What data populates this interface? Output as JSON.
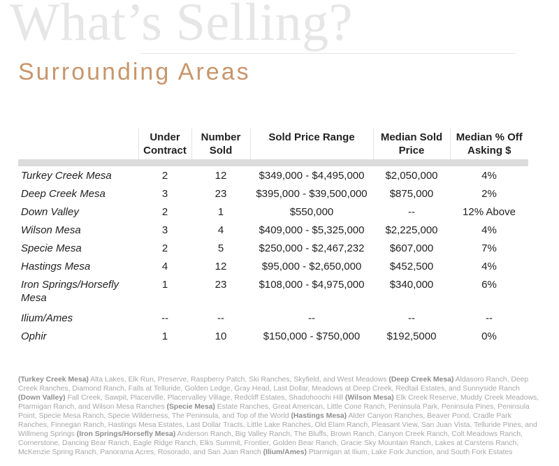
{
  "heading": {
    "title": "What’s Selling?",
    "subtitle": "Surrounding Areas"
  },
  "table": {
    "headers": {
      "area": "",
      "under_contract": [
        "Under",
        "Contract"
      ],
      "number_sold": [
        "Number",
        "Sold"
      ],
      "sold_price_range": "Sold Price Range",
      "median_sold_price": [
        "Median Sold",
        "Price"
      ],
      "median_off_asking": [
        "Median % Off",
        "Asking $"
      ]
    },
    "rows": [
      {
        "area": "Turkey Creek Mesa",
        "under_contract": "2",
        "number_sold": "12",
        "range": "$349,000 - $4,495,000",
        "median": "$2,050,000",
        "off": "4%"
      },
      {
        "area": "Deep Creek Mesa",
        "under_contract": "3",
        "number_sold": "23",
        "range": "$395,000 - $39,500,000",
        "median": "$875,000",
        "off": "2%"
      },
      {
        "area": "Down Valley",
        "under_contract": "2",
        "number_sold": "1",
        "range": "$550,000",
        "median": "--",
        "off": "12% Above"
      },
      {
        "area": "Wilson Mesa",
        "under_contract": "3",
        "number_sold": "4",
        "range": "$409,000 - $5,325,000",
        "median": "$2,225,000",
        "off": "4%"
      },
      {
        "area": "Specie Mesa",
        "under_contract": "2",
        "number_sold": "5",
        "range": "$250,000 - $2,467,232",
        "median": "$607,000",
        "off": "7%"
      },
      {
        "area": "Hastings Mesa",
        "under_contract": "4",
        "number_sold": "12",
        "range": "$95,000 - $2,650,000",
        "median": "$452,500",
        "off": "4%"
      },
      {
        "area": "Iron Springs/Horsefly Mesa",
        "under_contract": "1",
        "number_sold": "23",
        "range": "$108,000 - $4,975,000",
        "median": "$340,000",
        "off": "6%"
      },
      {
        "area": "Ilium/Ames",
        "under_contract": "--",
        "number_sold": "--",
        "range": "--",
        "median": "--",
        "off": "--"
      },
      {
        "area": "Ophir",
        "under_contract": "1",
        "number_sold": "10",
        "range": "$150,000 - $750,000",
        "median": "$192,5000",
        "off": "0%"
      }
    ]
  },
  "footnote": [
    {
      "area": "(Turkey Creek Mesa)",
      "text": " Alta Lakes, Elk Run, Preserve, Raspberry Patch, Ski Ranches, Skyfield, and West Meadows "
    },
    {
      "area": "(Deep Creek Mesa)",
      "text": " Aldasoro Ranch, Deep Creek Ranches, Diamond Ranch, Falls at Telluride, Golden Ledge, Gray Head, Last Dollar, Meadows at Deep Creek, Redtail Estates, and Sunnyside Ranch "
    },
    {
      "area": "(Down Valley)",
      "text": " Fall Creek, Sawpit, Placerville, Placervalley Village, Redcliff Estates, Shadohoochi Hill "
    },
    {
      "area": "(Wilson Mesa)",
      "text": " Elk Creek Reserve, Muddy Creek Meadows, Ptarmigan Ranch, and Wilson Mesa Ranches "
    },
    {
      "area": "(Specie Mesa)",
      "text": " Estate Ranches, Great American, Little Cone Ranch, Peninsula Park, Peninsula Pines, Peninsula Point, Specie Mesa Ranch, Specie Wilderness, The Peninsula, and Top of the World "
    },
    {
      "area": "(Hastings Mesa)",
      "text": " Alder Canyon Ranches, Beaver Pond, Cradle Park Ranches, Finnegan Ranch, Hastings Mesa Estates, Last Dollar Tracts, Little Lake Ranches, Old Elam Ranch, Pleasant View, San Juan Vista, Telluride Pines, and Willmeng Springs "
    },
    {
      "area": "(Iron Springs/Horsefly Mesa)",
      "text": " Anderson Ranch, Big Valley Ranch, The Bluffs, Brown Ranch, Canyon Creek Ranch, Colt Meadows Ranch, Cornerstone, Dancing Bear Ranch, Eagle Ridge Ranch, Elks Summit, Frontier, Golden Bear Ranch, Gracie Sky Mountain Ranch, Lakes at Carstens Ranch, McKenzie Spring Ranch, Panorama Acres, Rosorado, and San Juan Ranch "
    },
    {
      "area": "(Ilium/Ames)",
      "text": " Ptarmigan at Ilium, Lake Fork Junction, and South Fork Estates"
    }
  ]
}
